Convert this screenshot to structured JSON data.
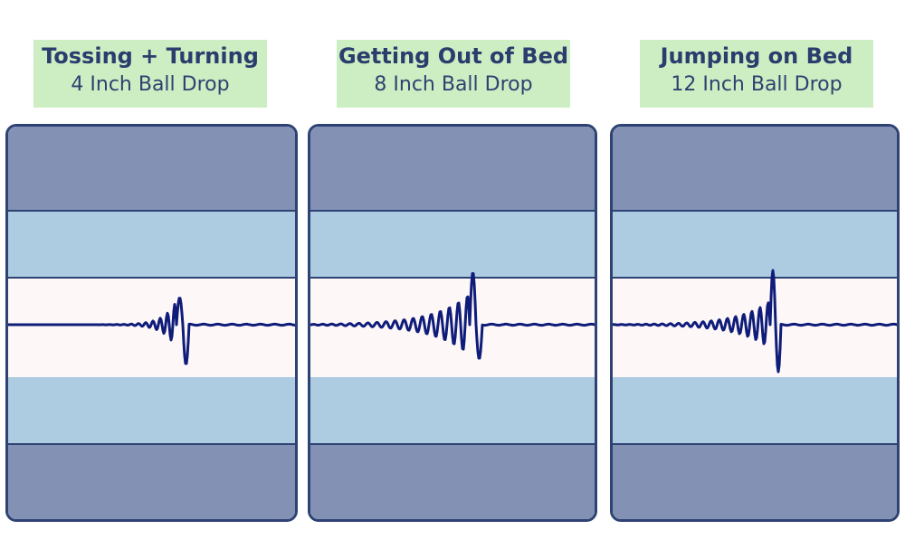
{
  "colors": {
    "outer_layer": "#8391b5",
    "inner_layer": "#adcbe1",
    "center_layer": "#fdf8f7",
    "border": "#2e4373",
    "wave": "#0f1c7a",
    "label_bg": "#cdeec3"
  },
  "panels": [
    {
      "title": "Tossing + Turning",
      "subtitle": "4 Inch Ball Drop"
    },
    {
      "title": "Getting Out of Bed",
      "subtitle": "8 Inch Ball Drop"
    },
    {
      "title": "Jumping on Bed",
      "subtitle": "12 Inch Ball Drop"
    }
  ]
}
